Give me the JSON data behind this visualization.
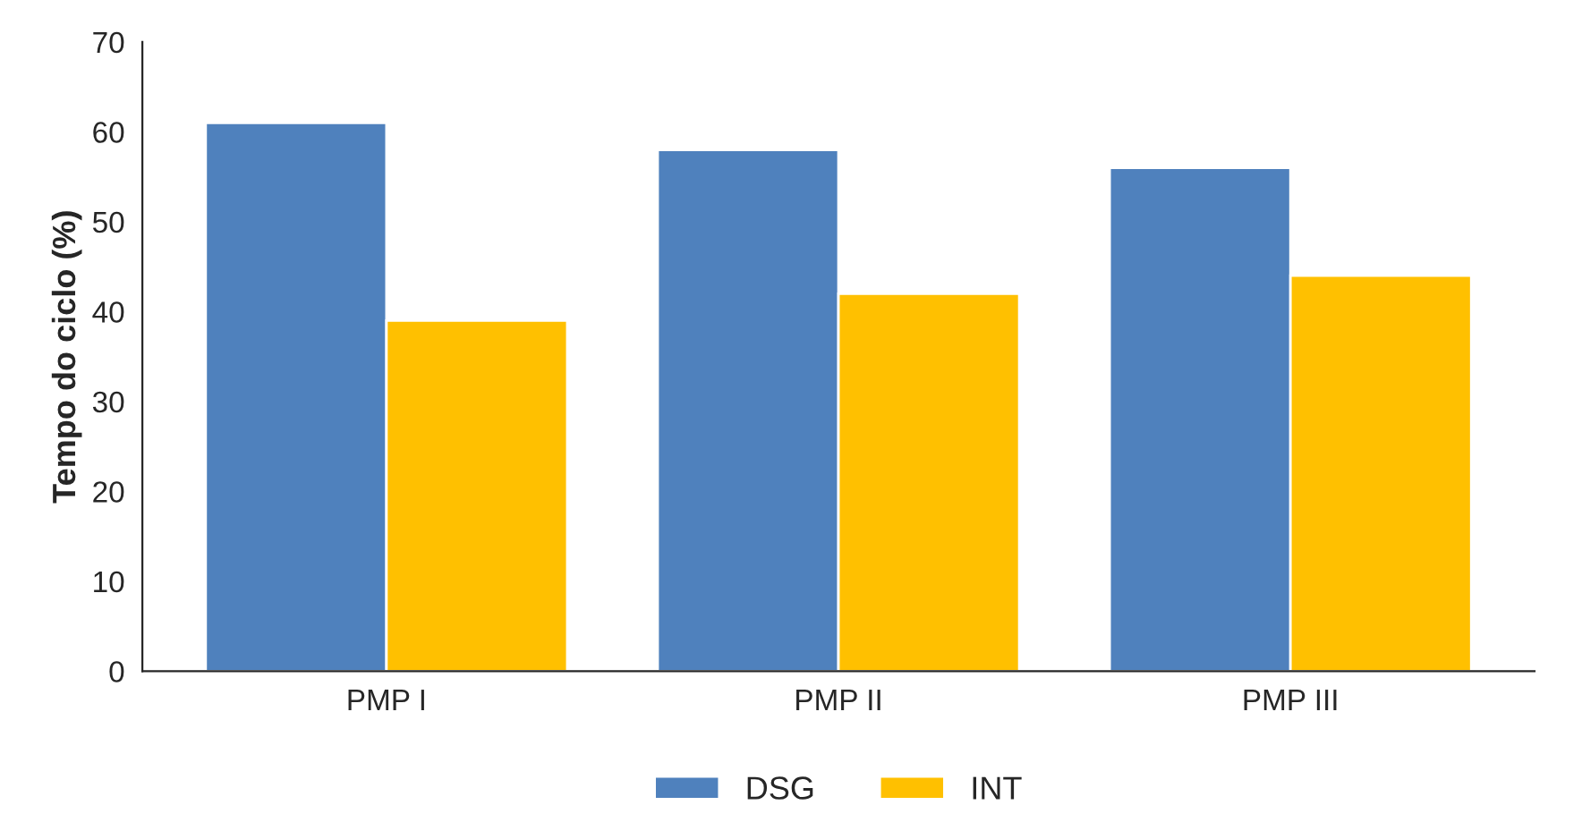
{
  "chart_data": {
    "type": "bar",
    "ylabel": "Tempo do ciclo (%)",
    "categories": [
      "PMP I",
      "PMP II",
      "PMP III"
    ],
    "series": [
      {
        "name": "DSG",
        "color": "#4f81bd",
        "values": [
          61,
          58,
          56
        ]
      },
      {
        "name": "INT",
        "color": "#ffc000",
        "values": [
          39,
          42,
          44
        ]
      }
    ],
    "ylim": [
      0,
      70
    ],
    "yticks": [
      0,
      10,
      20,
      30,
      40,
      50,
      60,
      70
    ],
    "grid": false,
    "legend": "bottom"
  }
}
